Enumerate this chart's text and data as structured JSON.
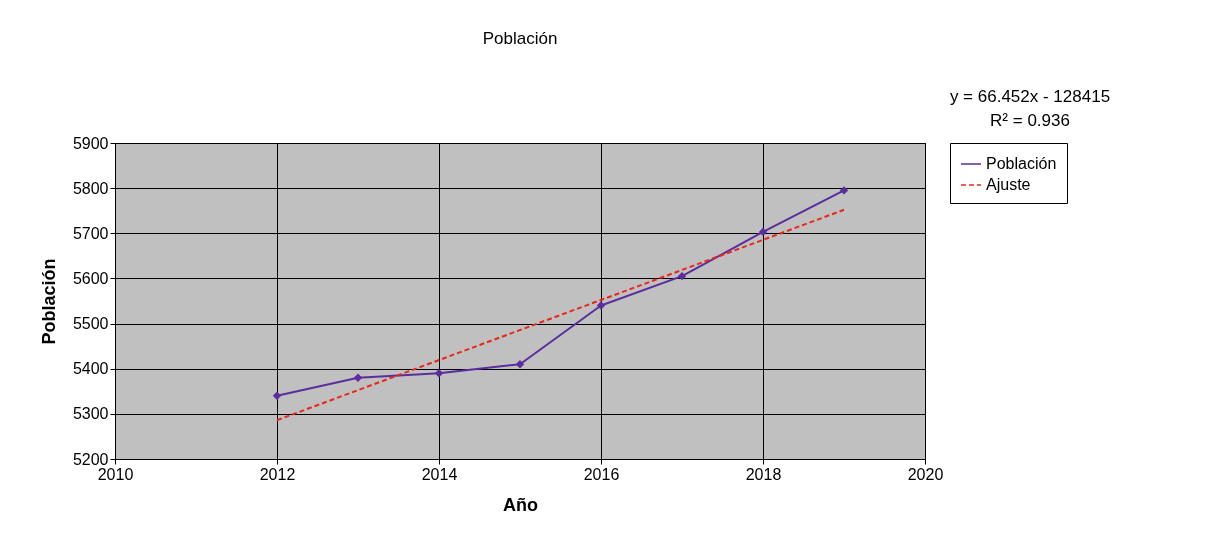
{
  "chart_data": {
    "type": "line",
    "title": "Población",
    "xlabel": "Año",
    "ylabel": "Población",
    "xlim": [
      2010,
      2020
    ],
    "xticks": [
      2010,
      2012,
      2014,
      2016,
      2018,
      2020
    ],
    "ylim": [
      5200,
      5900
    ],
    "yticks": [
      5200,
      5300,
      5400,
      5500,
      5600,
      5700,
      5800,
      5900
    ],
    "grid": true,
    "legend": "right",
    "series": [
      {
        "name": "Población",
        "color": "#5b2d9e",
        "x": [
          2012,
          2013,
          2014,
          2015,
          2016,
          2017,
          2018,
          2019
        ],
        "values": [
          5340,
          5380,
          5390,
          5410,
          5540,
          5605,
          5703,
          5795
        ],
        "marker": "diamond",
        "line_style": "solid"
      },
      {
        "name": "Ajuste",
        "type": "line",
        "color": "#e8261c",
        "x": [
          2012,
          2019
        ],
        "values": [
          5286,
          5752
        ],
        "marker": "none",
        "line_style": "dashed"
      }
    ],
    "annotations": [
      "y = 66.452x - 128415",
      "R² = 0.936"
    ]
  }
}
